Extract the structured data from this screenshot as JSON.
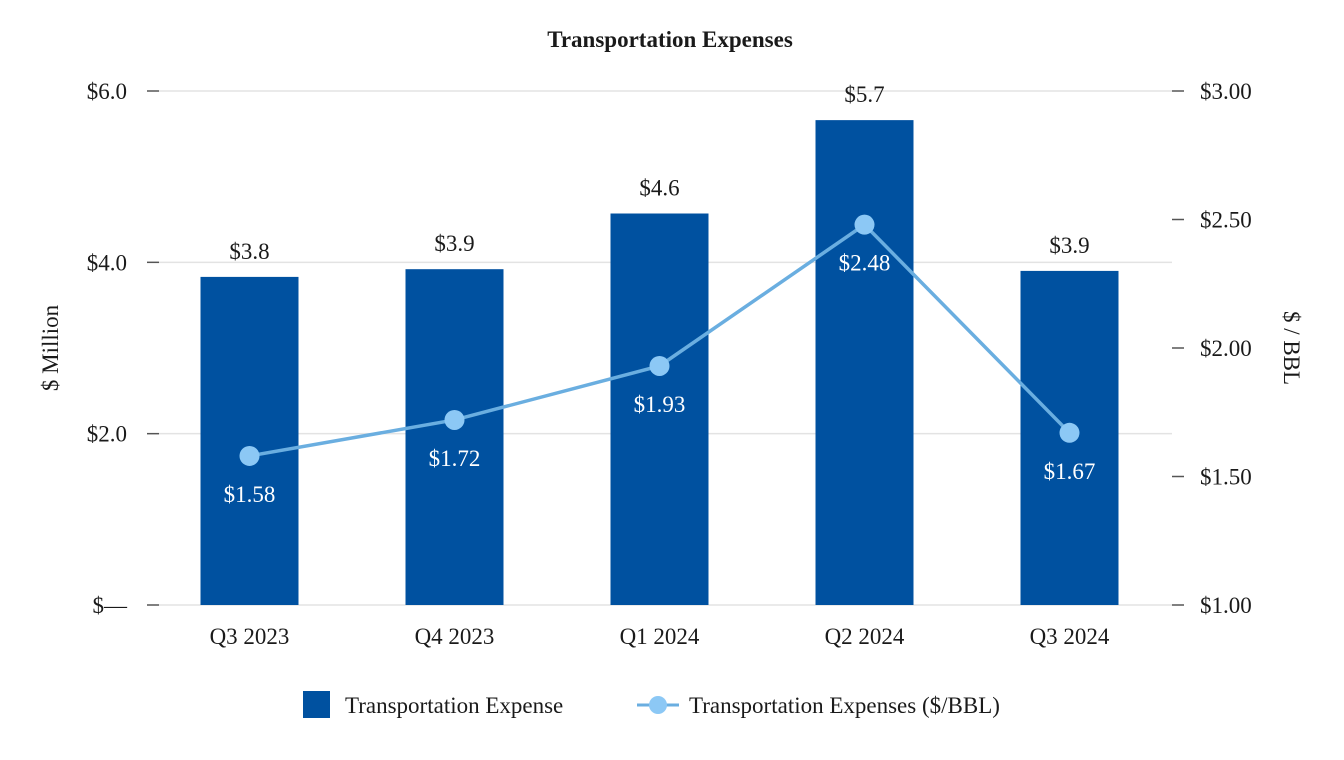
{
  "chart_data": {
    "type": "bar",
    "title": "Transportation Expenses",
    "categories": [
      "Q3 2023",
      "Q4 2023",
      "Q1 2024",
      "Q2 2024",
      "Q3 2024"
    ],
    "series": [
      {
        "name": "Transportation Expense",
        "type": "bar",
        "axis": "left",
        "values": [
          3.83,
          3.92,
          4.57,
          5.66,
          3.9
        ],
        "labels": [
          "$3.8",
          "$3.9",
          "$4.6",
          "$5.7",
          "$3.9"
        ],
        "color": "#0051a0"
      },
      {
        "name": "Transportation Expenses ($/BBL)",
        "type": "line",
        "axis": "right",
        "values": [
          1.58,
          1.72,
          1.93,
          2.48,
          1.67
        ],
        "labels": [
          "$1.58",
          "$1.72",
          "$1.93",
          "$2.48",
          "$1.67"
        ],
        "color": "#6aaee0",
        "marker_color": "#8cc8f5"
      }
    ],
    "y_left": {
      "label": "$ Million",
      "ylim": [
        0,
        6
      ],
      "ticks": [
        0,
        2,
        4,
        6
      ],
      "tick_labels": [
        "$—",
        "$2.0",
        "$4.0",
        "$6.0"
      ]
    },
    "y_right": {
      "label": "$ / BBL",
      "ylim": [
        1.0,
        3.0
      ],
      "ticks": [
        1.0,
        1.5,
        2.0,
        2.5,
        3.0
      ],
      "tick_labels": [
        "$1.00",
        "$1.50",
        "$2.00",
        "$2.50",
        "$3.00"
      ]
    },
    "grid": true,
    "legend": "bottom"
  }
}
